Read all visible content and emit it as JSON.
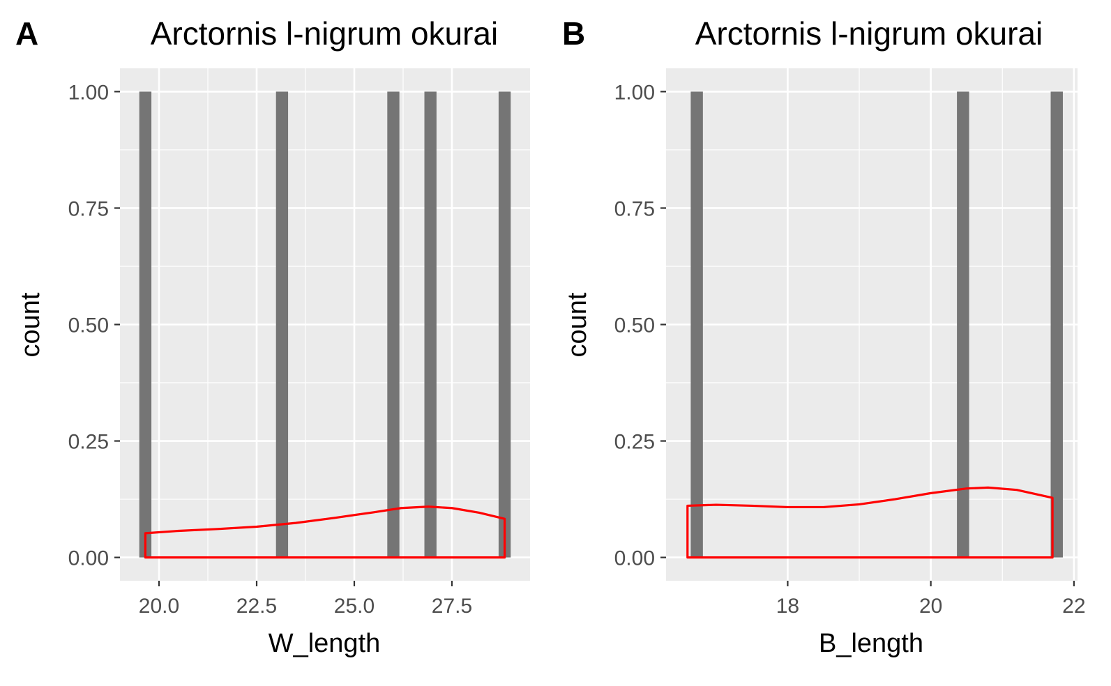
{
  "chart_data": [
    {
      "panel": "A",
      "type": "bar",
      "title": "Arctornis l-nigrum okurai",
      "xlabel": "W_length",
      "ylabel": "count",
      "xlim": [
        19.0,
        29.5
      ],
      "ylim": [
        -0.05,
        1.05
      ],
      "xticks": [
        20.0,
        22.5,
        25.0,
        27.5
      ],
      "xtick_labels": [
        "20.0",
        "22.5",
        "25.0",
        "27.5"
      ],
      "yticks": [
        0.0,
        0.25,
        0.5,
        0.75,
        1.0
      ],
      "ytick_labels": [
        "0.00",
        "0.25",
        "0.50",
        "0.75",
        "1.00"
      ],
      "bin_width": 0.31,
      "bars": [
        {
          "x": 19.65,
          "count": 1
        },
        {
          "x": 23.15,
          "count": 1
        },
        {
          "x": 26.0,
          "count": 1
        },
        {
          "x": 26.95,
          "count": 1
        },
        {
          "x": 28.85,
          "count": 1
        }
      ],
      "density": {
        "x": [
          19.65,
          20.5,
          21.5,
          22.5,
          23.5,
          24.5,
          25.5,
          26.2,
          26.9,
          27.5,
          28.2,
          28.85
        ],
        "y": [
          0.052,
          0.057,
          0.061,
          0.066,
          0.074,
          0.085,
          0.097,
          0.106,
          0.109,
          0.106,
          0.096,
          0.083
        ]
      },
      "colors": {
        "bar": "#757575",
        "density": "#ff0000",
        "panel_bg": "#ebebeb",
        "grid": "#ffffff"
      },
      "grid": true
    },
    {
      "panel": "B",
      "type": "bar",
      "title": "Arctornis l-nigrum okurai",
      "xlabel": "B_length",
      "ylabel": "count",
      "xlim": [
        16.3,
        22.05
      ],
      "ylim": [
        -0.05,
        1.05
      ],
      "xticks": [
        18,
        20,
        22
      ],
      "xtick_labels": [
        "18",
        "20",
        "22"
      ],
      "yticks": [
        0.0,
        0.25,
        0.5,
        0.75,
        1.0
      ],
      "ytick_labels": [
        "0.00",
        "0.25",
        "0.50",
        "0.75",
        "1.00"
      ],
      "bin_width": 0.17,
      "bars": [
        {
          "x": 16.73,
          "count": 1
        },
        {
          "x": 20.45,
          "count": 1
        },
        {
          "x": 21.76,
          "count": 1
        }
      ],
      "density": {
        "x": [
          16.6,
          17.0,
          17.5,
          18.0,
          18.5,
          19.0,
          19.5,
          20.0,
          20.5,
          20.8,
          21.2,
          21.7
        ],
        "y": [
          0.111,
          0.113,
          0.111,
          0.108,
          0.108,
          0.114,
          0.125,
          0.138,
          0.148,
          0.15,
          0.145,
          0.128
        ]
      },
      "colors": {
        "bar": "#757575",
        "density": "#ff0000",
        "panel_bg": "#ebebeb",
        "grid": "#ffffff"
      },
      "grid": true
    }
  ]
}
